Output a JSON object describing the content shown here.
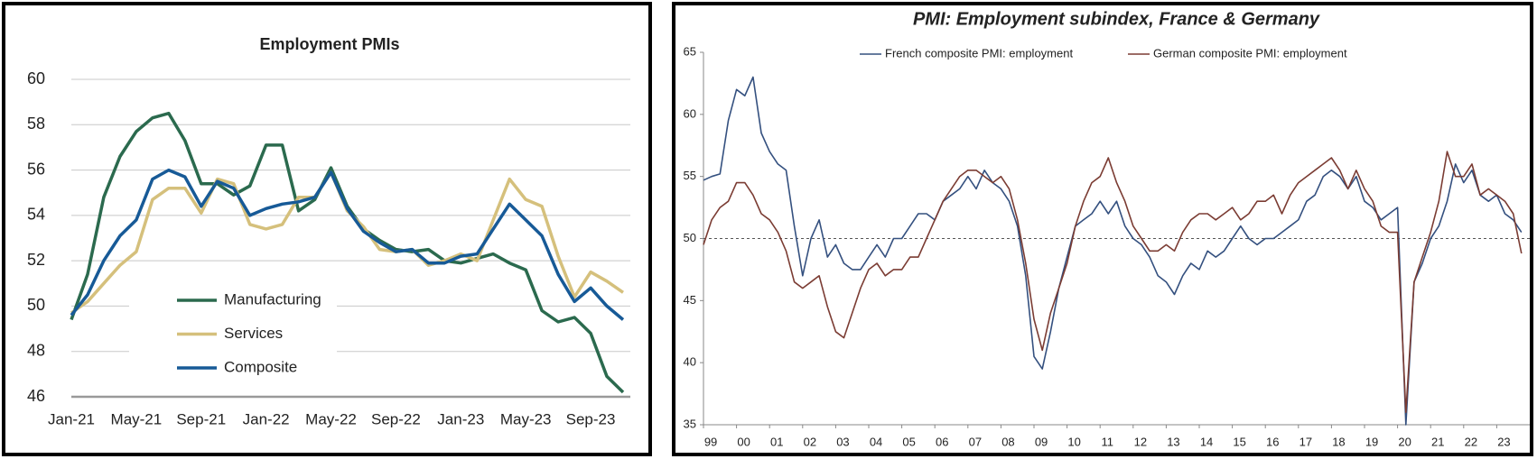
{
  "chart_data": [
    {
      "type": "line",
      "title": "Employment PMIs",
      "categories": [
        "Jan-21",
        null,
        null,
        null,
        "May-21",
        null,
        null,
        null,
        "Sep-21",
        null,
        null,
        null,
        "Jan-22",
        null,
        null,
        null,
        "May-22",
        null,
        null,
        null,
        "Sep-22",
        null,
        null,
        null,
        "Jan-23",
        null,
        null,
        null,
        "May-23",
        null,
        null,
        null,
        "Sep-23",
        null,
        null
      ],
      "series": [
        {
          "name": "Manufacturing",
          "color": "#2b6a4e",
          "values": [
            49.4,
            51.4,
            54.8,
            56.6,
            57.7,
            58.3,
            58.5,
            57.3,
            55.4,
            55.4,
            54.9,
            55.3,
            57.1,
            57.1,
            54.2,
            54.7,
            56.1,
            54.4,
            53.4,
            52.9,
            52.5,
            52.4,
            52.5,
            52.0,
            51.9,
            52.1,
            52.3,
            51.9,
            51.6,
            49.8,
            49.3,
            49.5,
            48.8,
            46.9,
            46.2
          ]
        },
        {
          "name": "Services",
          "color": "#d5c07c",
          "values": [
            49.7,
            50.2,
            51.0,
            51.8,
            52.4,
            54.7,
            55.2,
            55.2,
            54.1,
            55.6,
            55.4,
            53.6,
            53.4,
            53.6,
            54.8,
            54.8,
            55.9,
            54.2,
            53.5,
            52.5,
            52.4,
            52.5,
            51.8,
            52.0,
            52.3,
            52.0,
            53.8,
            55.6,
            54.7,
            54.4,
            52.2,
            50.4,
            51.5,
            51.1,
            50.6
          ]
        },
        {
          "name": "Composite",
          "color": "#175a97",
          "values": [
            49.6,
            50.5,
            52.0,
            53.1,
            53.8,
            55.6,
            56.0,
            55.7,
            54.4,
            55.5,
            55.2,
            54.0,
            54.3,
            54.5,
            54.6,
            54.8,
            55.9,
            54.3,
            53.3,
            52.8,
            52.4,
            52.5,
            51.9,
            51.9,
            52.2,
            52.3,
            53.4,
            54.5,
            53.8,
            53.1,
            51.4,
            50.2,
            50.8,
            50.0,
            49.4
          ]
        }
      ],
      "ylim": [
        46,
        60
      ],
      "yticks": [
        46,
        48,
        50,
        52,
        54,
        56,
        58,
        60
      ],
      "grid": true,
      "legend": "lower-left"
    },
    {
      "type": "line",
      "title": "PMI: Employment subindex, France & Germany",
      "x": [
        1999,
        1999.25,
        1999.5,
        1999.75,
        2000,
        2000.25,
        2000.5,
        2000.75,
        2001,
        2001.25,
        2001.5,
        2001.75,
        2002,
        2002.25,
        2002.5,
        2002.75,
        2003,
        2003.25,
        2003.5,
        2003.75,
        2004,
        2004.25,
        2004.5,
        2004.75,
        2005,
        2005.25,
        2005.5,
        2005.75,
        2006,
        2006.25,
        2006.5,
        2006.75,
        2007,
        2007.25,
        2007.5,
        2007.75,
        2008,
        2008.25,
        2008.5,
        2008.75,
        2009,
        2009.25,
        2009.5,
        2009.75,
        2010,
        2010.25,
        2010.5,
        2010.75,
        2011,
        2011.25,
        2011.5,
        2011.75,
        2012,
        2012.25,
        2012.5,
        2012.75,
        2013,
        2013.25,
        2013.5,
        2013.75,
        2014,
        2014.25,
        2014.5,
        2014.75,
        2015,
        2015.25,
        2015.5,
        2015.75,
        2016,
        2016.25,
        2016.5,
        2016.75,
        2017,
        2017.25,
        2017.5,
        2017.75,
        2018,
        2018.25,
        2018.5,
        2018.75,
        2019,
        2019.25,
        2019.5,
        2019.75,
        2020,
        2020.25,
        2020.5,
        2020.75,
        2021,
        2021.25,
        2021.5,
        2021.75,
        2022,
        2022.25,
        2022.5,
        2022.75,
        2023,
        2023.25,
        2023.5,
        2023.75
      ],
      "series": [
        {
          "name": "French composite PMI: employment",
          "color": "#34507f",
          "values": [
            54.7,
            55.0,
            55.2,
            59.5,
            62,
            61.5,
            63,
            58.5,
            57,
            56,
            55.5,
            51,
            47,
            50,
            51.5,
            48.5,
            49.5,
            48,
            47.5,
            47.5,
            48.5,
            49.5,
            48.5,
            50,
            50,
            51,
            52,
            52,
            51.5,
            53,
            53.5,
            54,
            55,
            54,
            55.5,
            54.5,
            54,
            53,
            51,
            47,
            40.5,
            39.5,
            42.5,
            46,
            48.5,
            51,
            51.5,
            52,
            53,
            52,
            53,
            51,
            50,
            49.5,
            48.5,
            47,
            46.5,
            45.5,
            47,
            48,
            47.5,
            49,
            48.5,
            49,
            50,
            51,
            50,
            49.5,
            50,
            50,
            50.5,
            51,
            51.5,
            53,
            53.5,
            55,
            55.5,
            55,
            54,
            55,
            53,
            52.5,
            51.5,
            52,
            52.5,
            35,
            46.5,
            48,
            50,
            51,
            53,
            56,
            54.5,
            55.5,
            53.5,
            53,
            53.5,
            52,
            51.5,
            50.5
          ]
        },
        {
          "name": "German composite PMI: employment",
          "color": "#7b3c33",
          "values": [
            49.5,
            51.5,
            52.5,
            53,
            54.5,
            54.5,
            53.5,
            52,
            51.5,
            50.5,
            49,
            46.5,
            46,
            46.5,
            47,
            44.5,
            42.5,
            42,
            44,
            46,
            47.5,
            48,
            47,
            47.5,
            47.5,
            48.5,
            48.5,
            50,
            51.5,
            53,
            54,
            55,
            55.5,
            55.5,
            55,
            54.5,
            55,
            54,
            51.5,
            48,
            43.5,
            41,
            44,
            46,
            48,
            51,
            53,
            54.5,
            55,
            56.5,
            54.5,
            53,
            51,
            50,
            49,
            49,
            49.5,
            49,
            50.5,
            51.5,
            52,
            52,
            51.5,
            52,
            52.5,
            51.5,
            52,
            53,
            53,
            53.5,
            52,
            53.5,
            54.5,
            55,
            55.5,
            56,
            56.5,
            55.5,
            54,
            55.5,
            54,
            53,
            51,
            50.5,
            50.5,
            36,
            46.5,
            48.5,
            50.5,
            53,
            57,
            55,
            55,
            56,
            53.5,
            54,
            53.5,
            53,
            52,
            48.8
          ]
        }
      ],
      "xlim": [
        1999,
        2024
      ],
      "xticks": [
        {
          "value": 1999,
          "label": "99"
        },
        {
          "value": 2000,
          "label": "00"
        },
        {
          "value": 2001,
          "label": "01"
        },
        {
          "value": 2002,
          "label": "02"
        },
        {
          "value": 2003,
          "label": "03"
        },
        {
          "value": 2004,
          "label": "04"
        },
        {
          "value": 2005,
          "label": "05"
        },
        {
          "value": 2006,
          "label": "06"
        },
        {
          "value": 2007,
          "label": "07"
        },
        {
          "value": 2008,
          "label": "08"
        },
        {
          "value": 2009,
          "label": "09"
        },
        {
          "value": 2010,
          "label": "10"
        },
        {
          "value": 2011,
          "label": "11"
        },
        {
          "value": 2012,
          "label": "12"
        },
        {
          "value": 2013,
          "label": "13"
        },
        {
          "value": 2014,
          "label": "14"
        },
        {
          "value": 2015,
          "label": "15"
        },
        {
          "value": 2016,
          "label": "16"
        },
        {
          "value": 2017,
          "label": "17"
        },
        {
          "value": 2018,
          "label": "18"
        },
        {
          "value": 2019,
          "label": "19"
        },
        {
          "value": 2020,
          "label": "20"
        },
        {
          "value": 2021,
          "label": "21"
        },
        {
          "value": 2022,
          "label": "22"
        },
        {
          "value": 2023,
          "label": "23"
        }
      ],
      "ylim": [
        35,
        65
      ],
      "yticks": [
        35,
        40,
        45,
        50,
        55,
        60,
        65
      ],
      "reference_line": 50,
      "grid": false,
      "legend": "top"
    }
  ]
}
